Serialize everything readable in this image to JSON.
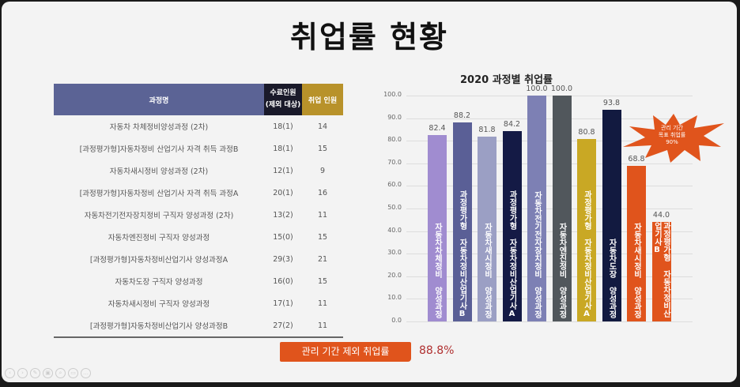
{
  "title": "취업률 현황",
  "table": {
    "headers": [
      "과정명",
      "수료인원",
      "(제외 대상)",
      "취업 인원"
    ],
    "rows": [
      [
        "자동차 차체정비양성과정 (2차)",
        "18(1)",
        "14"
      ],
      [
        "[과정평가형]자동차정비 산업기사 자격 취득 과정B",
        "18(1)",
        "15"
      ],
      [
        "자동차새시정비 양성과정 (2차)",
        "12(1)",
        "9"
      ],
      [
        "[과정평가형]자동차정비 산업기사 자격 취득 과정A",
        "20(1)",
        "16"
      ],
      [
        "자동차전기전자장치정비 구직자 양성과정 (2차)",
        "13(2)",
        "11"
      ],
      [
        "자동차엔진정비 구직자 양성과정",
        "15(0)",
        "15"
      ],
      [
        "[과정평가형]자동차정비산업기사 양성과정A",
        "29(3)",
        "21"
      ],
      [
        "자동차도장 구직자 양성과정",
        "16(0)",
        "15"
      ],
      [
        "자동차새시정비 구직자 양성과정",
        "17(1)",
        "11"
      ],
      [
        "[과정평가형]자동차정비산업기사 양성과정B",
        "27(2)",
        "11"
      ]
    ]
  },
  "chart_data": {
    "type": "bar",
    "title": "2020 과정별 취업률",
    "ylim": [
      0,
      100
    ],
    "yticks": [
      "0.0",
      "10.0",
      "20.0",
      "30.0",
      "40.0",
      "50.0",
      "60.0",
      "70.0",
      "80.0",
      "90.0",
      "100.0"
    ],
    "categories": [
      "자동차차체정비 양성과정",
      "과정평가형 자동차정비산업기사B",
      "자동차새시정비 양성과정",
      "과정평가형 자동차정비산업기사A",
      "자동차전기전자장치정비 양성과정",
      "자동차엔진정비 양성과정",
      "과정평가형 자동차정비산업기사A",
      "자동차도장 양성과정",
      "자동차새시정비 양성과정",
      "과정평가형 자동차정비산업기사B"
    ],
    "values": [
      82.4,
      88.2,
      81.8,
      84.2,
      100.0,
      100.0,
      80.8,
      93.8,
      68.8,
      44.0
    ],
    "value_labels": [
      "82.4",
      "88.2",
      "81.8",
      "84.2",
      "100.0",
      "100.0",
      "80.8",
      "93.8",
      "68.8",
      "44.0"
    ],
    "colors": [
      "#a08cd0",
      "#5a5f96",
      "#9b9fc4",
      "#141a45",
      "#7d80b4",
      "#51575c",
      "#c9a824",
      "#121a40",
      "#e0541c",
      "#e0541c"
    ],
    "grid": true,
    "annotation": {
      "lines": [
        "관리 기간",
        "목표 취업률",
        "90%"
      ],
      "color": "#e0541c"
    }
  },
  "summary": {
    "label": "관리 기간 제외 취업률",
    "value": "88.8%"
  },
  "toolbar": {
    "icons": [
      "prev-icon",
      "next-icon",
      "pen-icon",
      "slides-icon",
      "zoom-icon",
      "camera-icon",
      "more-icon"
    ]
  }
}
